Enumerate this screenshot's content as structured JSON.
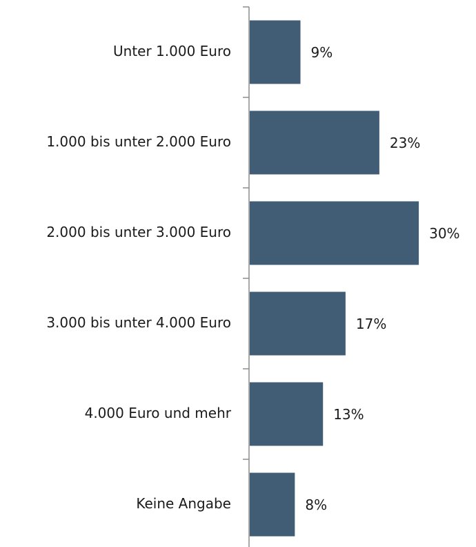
{
  "chart_data": {
    "type": "barh",
    "categories": [
      "Unter 1.000 Euro",
      "1.000 bis unter 2.000 Euro",
      "2.000 bis unter 3.000 Euro",
      "3.000 bis unter 4.000 Euro",
      "4.000 Euro und mehr",
      "Keine Angabe"
    ],
    "values": [
      9,
      23,
      30,
      17,
      13,
      8
    ],
    "value_labels": [
      "9%",
      "23%",
      "30%",
      "17%",
      "13%",
      "8%"
    ],
    "color": "#415d75"
  }
}
